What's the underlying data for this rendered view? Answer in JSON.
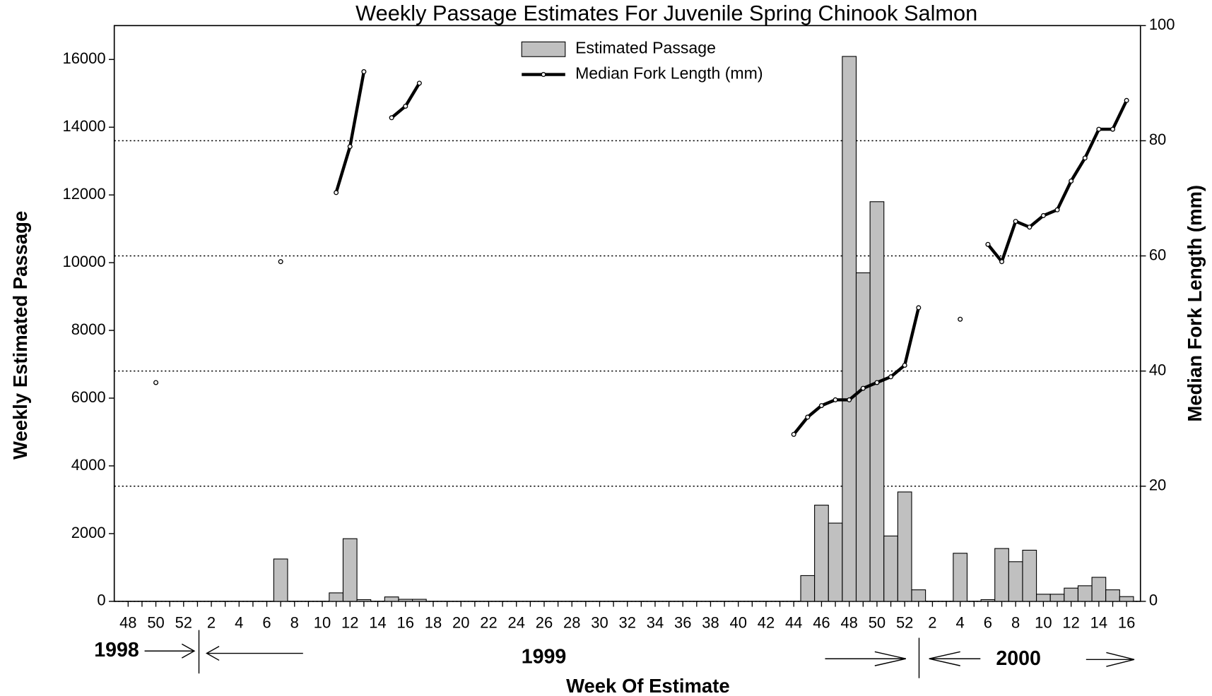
{
  "chart_data": {
    "type": "bar+line",
    "title": "Weekly Passage Estimates For Juvenile Spring Chinook Salmon",
    "xlabel": "Week Of Estimate",
    "ylabel": "Weekly Estimated Passage",
    "y2label": "Median Fork Length (mm)",
    "year_labels": [
      "1998",
      "1999",
      "2000"
    ],
    "categories": [
      48,
      null,
      50,
      null,
      52,
      null,
      2,
      null,
      4,
      null,
      6,
      null,
      8,
      null,
      10,
      null,
      12,
      null,
      14,
      null,
      16,
      null,
      18,
      null,
      20,
      null,
      22,
      null,
      24,
      null,
      26,
      null,
      28,
      null,
      30,
      null,
      32,
      null,
      34,
      null,
      36,
      null,
      38,
      null,
      40,
      null,
      42,
      null,
      44,
      null,
      46,
      null,
      48,
      null,
      50,
      null,
      52,
      null,
      2,
      null,
      4,
      null,
      6,
      null,
      8,
      null,
      10,
      null,
      12,
      null,
      14,
      null,
      16
    ],
    "series": [
      {
        "name": "Estimated Passage",
        "color": "#c0c0c0",
        "kind": "bar",
        "values": [
          0,
          0,
          0,
          0,
          0,
          0,
          0,
          0,
          0,
          0,
          0,
          1250,
          0,
          0,
          0,
          250,
          1850,
          50,
          0,
          130,
          60,
          60,
          0,
          0,
          0,
          0,
          0,
          0,
          0,
          0,
          0,
          0,
          0,
          0,
          0,
          0,
          0,
          0,
          0,
          0,
          0,
          0,
          0,
          0,
          0,
          0,
          0,
          0,
          0,
          760,
          2840,
          2310,
          16090,
          9700,
          11800,
          1930,
          3230,
          340,
          0,
          0,
          1420,
          0,
          50,
          1560,
          1170,
          1510,
          210,
          210,
          390,
          460,
          710,
          340,
          140
        ]
      },
      {
        "name": "Median Fork Length (mm)",
        "color": "#000000",
        "kind": "line",
        "axis": "y2",
        "values": [
          null,
          null,
          38,
          null,
          null,
          null,
          null,
          null,
          null,
          null,
          null,
          59,
          null,
          null,
          null,
          71,
          79,
          92,
          null,
          84,
          86,
          90,
          null,
          null,
          null,
          null,
          null,
          null,
          null,
          null,
          null,
          null,
          null,
          null,
          null,
          null,
          null,
          null,
          null,
          null,
          null,
          null,
          null,
          null,
          null,
          null,
          null,
          null,
          29,
          32,
          34,
          35,
          35,
          37,
          38,
          39,
          41,
          51,
          null,
          null,
          49,
          null,
          62,
          59,
          66,
          65,
          67,
          68,
          73,
          77,
          82,
          82,
          87
        ]
      }
    ],
    "ylim": [
      0,
      17000
    ],
    "yticks": [
      0,
      2000,
      4000,
      6000,
      8000,
      10000,
      12000,
      14000,
      16000
    ],
    "y2lim": [
      0,
      100
    ],
    "y2ticks": [
      0,
      20,
      40,
      60,
      80,
      100
    ],
    "grid": "y2",
    "legend": "upper center"
  }
}
